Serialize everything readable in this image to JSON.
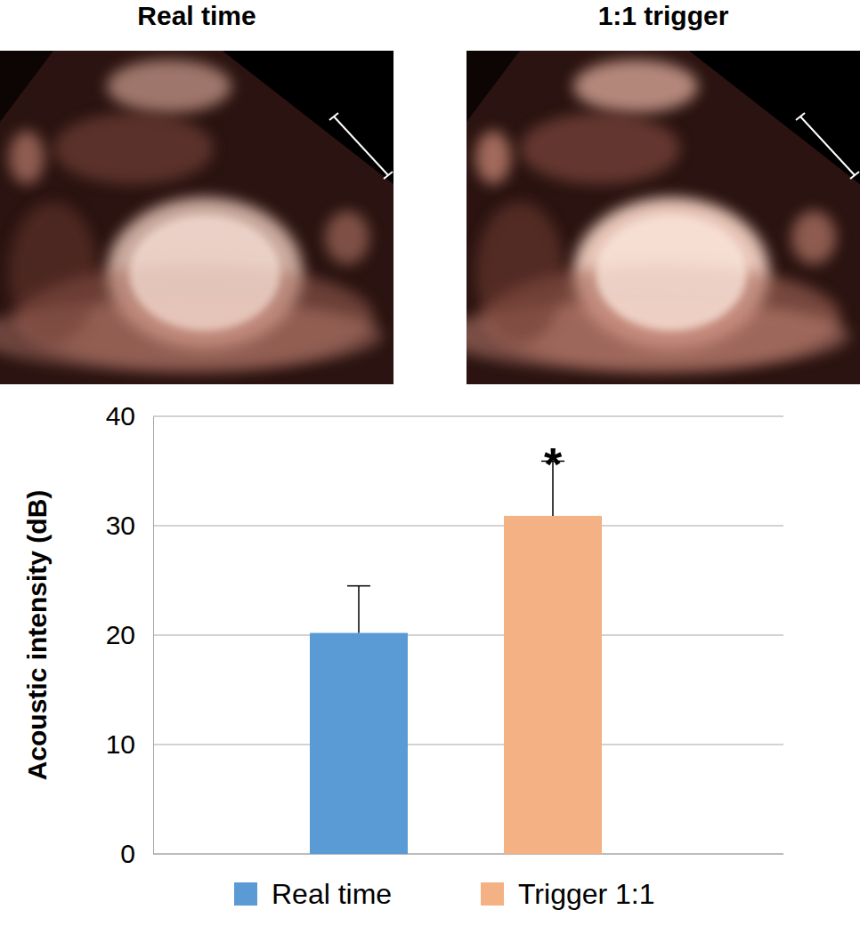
{
  "images": [
    {
      "title": "Real time"
    },
    {
      "title": "1:1 trigger"
    }
  ],
  "chart_data": {
    "type": "bar",
    "y_label": "Acoustic intensity (dB)",
    "categories": [
      null,
      null
    ],
    "series": [
      {
        "name": "Real time",
        "color": "#5b9bd5",
        "values": [
          20.2,
          null
        ],
        "errors": [
          4.3,
          null
        ]
      },
      {
        "name": "Trigger 1:1",
        "color": "#f4b183",
        "values": [
          null,
          30.9
        ],
        "errors": [
          null,
          5.0
        ],
        "annotation": "*"
      }
    ],
    "ylim": [
      0,
      40
    ],
    "yticks": [
      0,
      10,
      20,
      30,
      40
    ],
    "grid": true,
    "legend": "bottom"
  }
}
